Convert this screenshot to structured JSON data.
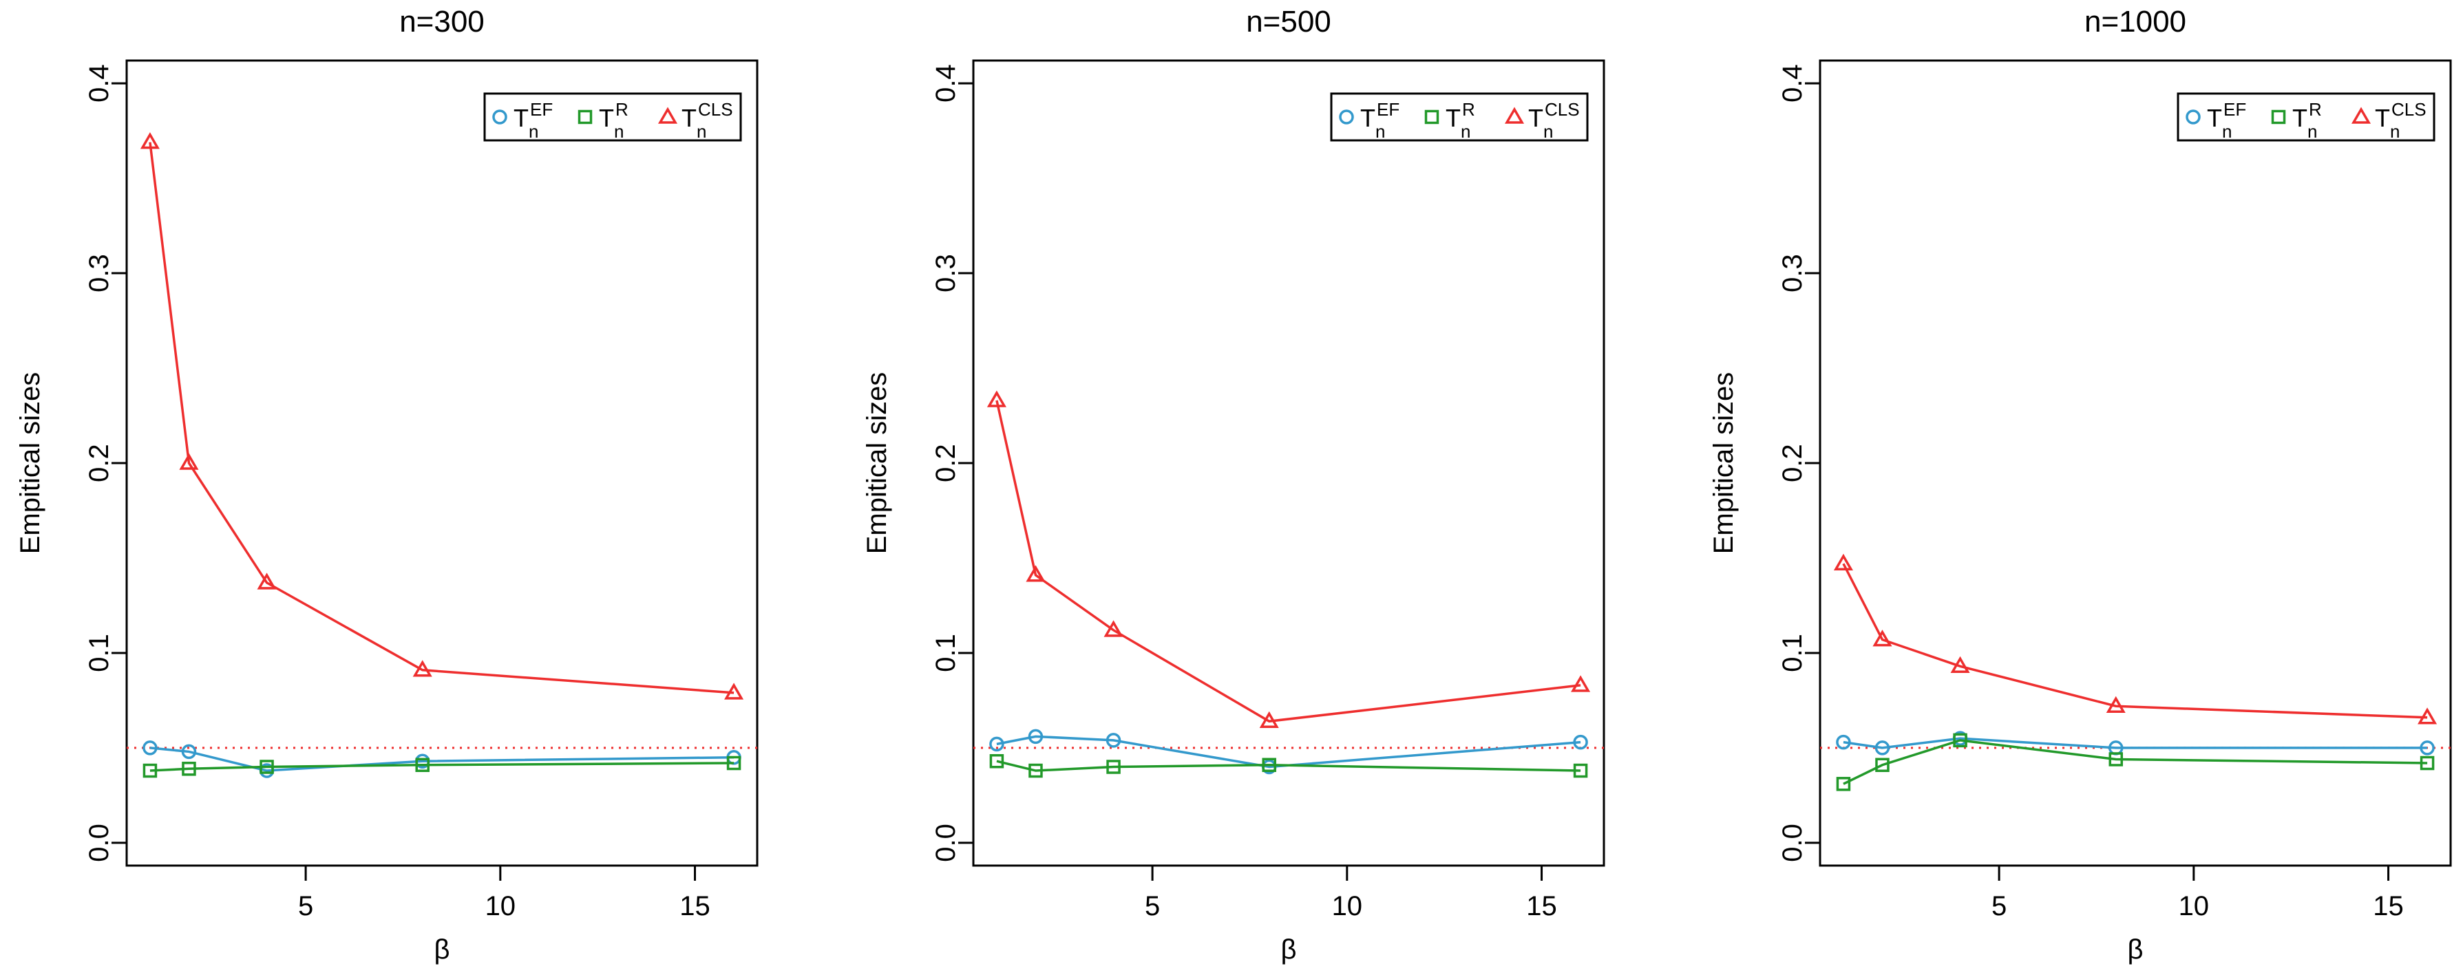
{
  "chart_data": [
    {
      "type": "line",
      "title": "n=300",
      "xlabel": "β",
      "ylabel": "Empitical sizes",
      "x": [
        1,
        2,
        4,
        8,
        16
      ],
      "xticks": [
        5,
        10,
        15
      ],
      "yticks": [
        "0.0",
        "0.1",
        "0.2",
        "0.3",
        "0.4"
      ],
      "xlim": [
        0.4,
        16.6
      ],
      "ylim": [
        -0.012,
        0.412
      ],
      "reference_line": 0.05,
      "legend_position": "top-right",
      "series": [
        {
          "name": "EF",
          "marker": "circle",
          "color": "#3399CC",
          "values": [
            0.05,
            0.048,
            0.038,
            0.043,
            0.045
          ]
        },
        {
          "name": "R",
          "marker": "square",
          "color": "#22992A",
          "values": [
            0.038,
            0.039,
            0.04,
            0.041,
            0.042
          ]
        },
        {
          "name": "CLS",
          "marker": "triangle",
          "color": "#EE2E2E",
          "values": [
            0.369,
            0.2,
            0.137,
            0.091,
            0.079
          ]
        }
      ]
    },
    {
      "type": "line",
      "title": "n=500",
      "xlabel": "β",
      "ylabel": "Empitical sizes",
      "x": [
        1,
        2,
        4,
        8,
        16
      ],
      "xticks": [
        5,
        10,
        15
      ],
      "yticks": [
        "0.0",
        "0.1",
        "0.2",
        "0.3",
        "0.4"
      ],
      "xlim": [
        0.4,
        16.6
      ],
      "ylim": [
        -0.012,
        0.412
      ],
      "reference_line": 0.05,
      "legend_position": "top-right",
      "series": [
        {
          "name": "EF",
          "marker": "circle",
          "color": "#3399CC",
          "values": [
            0.052,
            0.056,
            0.054,
            0.04,
            0.053
          ]
        },
        {
          "name": "R",
          "marker": "square",
          "color": "#22992A",
          "values": [
            0.043,
            0.038,
            0.04,
            0.041,
            0.038
          ]
        },
        {
          "name": "CLS",
          "marker": "triangle",
          "color": "#EE2E2E",
          "values": [
            0.233,
            0.141,
            0.112,
            0.064,
            0.083
          ]
        }
      ]
    },
    {
      "type": "line",
      "title": "n=1000",
      "xlabel": "β",
      "ylabel": "Empitical sizes",
      "x": [
        1,
        2,
        4,
        8,
        16
      ],
      "xticks": [
        5,
        10,
        15
      ],
      "yticks": [
        "0.0",
        "0.1",
        "0.2",
        "0.3",
        "0.4"
      ],
      "xlim": [
        0.4,
        16.6
      ],
      "ylim": [
        -0.012,
        0.412
      ],
      "reference_line": 0.05,
      "legend_position": "top-right",
      "series": [
        {
          "name": "EF",
          "marker": "circle",
          "color": "#3399CC",
          "values": [
            0.053,
            0.05,
            0.055,
            0.05,
            0.05
          ]
        },
        {
          "name": "R",
          "marker": "square",
          "color": "#22992A",
          "values": [
            0.031,
            0.041,
            0.054,
            0.044,
            0.042
          ]
        },
        {
          "name": "CLS",
          "marker": "triangle",
          "color": "#EE2E2E",
          "values": [
            0.147,
            0.107,
            0.093,
            0.072,
            0.066
          ]
        }
      ]
    }
  ],
  "legend_base_label": "T",
  "legend_subscript": "n",
  "reference_line_color": "#EE2E2E"
}
